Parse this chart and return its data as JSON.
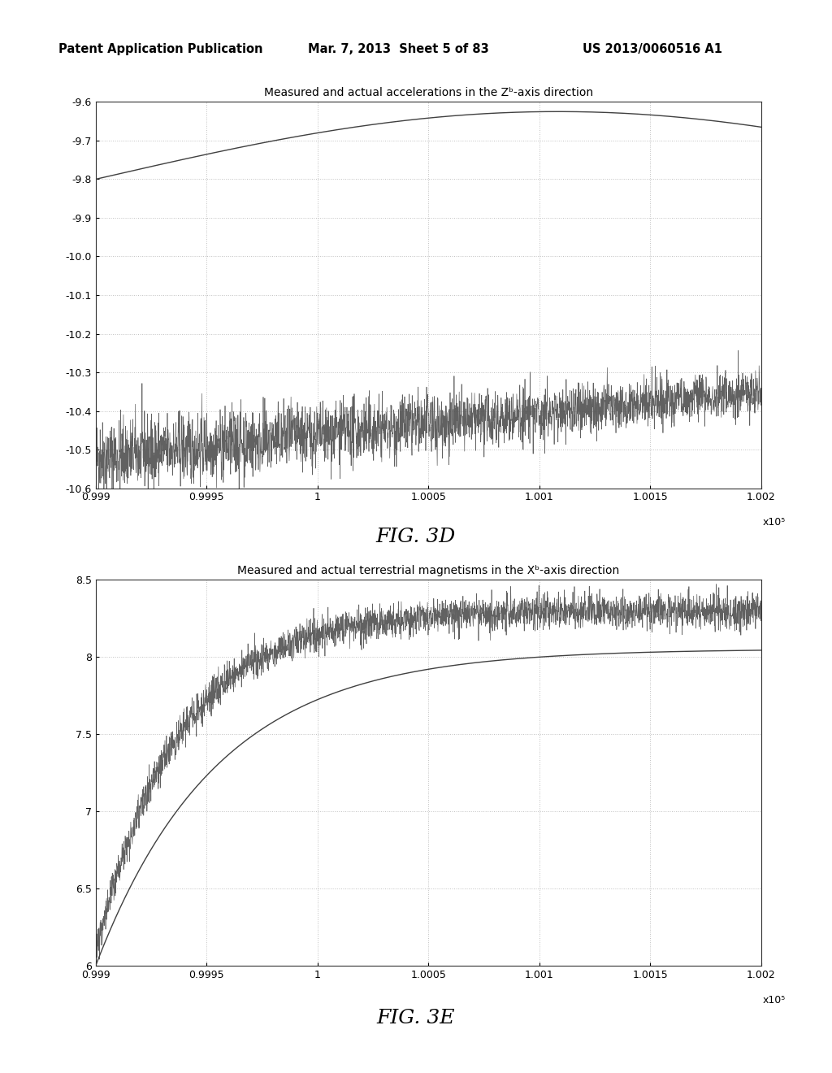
{
  "header_left": "Patent Application Publication",
  "header_mid": "Mar. 7, 2013  Sheet 5 of 83",
  "header_right": "US 2013/0060516 A1",
  "fig3d": {
    "title": "Measured and actual accelerations in the Zᵇ-axis direction",
    "xlim": [
      99900,
      100200
    ],
    "ylim": [
      -10.6,
      -9.6
    ],
    "xticks": [
      99900,
      99950,
      100000,
      100050,
      100100,
      100150,
      100200
    ],
    "xtick_labels": [
      "0.999",
      "0.9995",
      "1",
      "1.0005",
      "1.001",
      "1.0015",
      "1.002"
    ],
    "yticks": [
      -10.6,
      -10.5,
      -10.4,
      -10.3,
      -10.2,
      -10.1,
      -10.0,
      -9.9,
      -9.8,
      -9.7,
      -9.6
    ],
    "xlabel_sci": "x10⁵",
    "fig_label": "FIG. 3D"
  },
  "fig3e": {
    "title": "Measured and actual terrestrial magnetisms in the Xᵇ-axis direction",
    "xlim": [
      99900,
      100200
    ],
    "ylim": [
      6.0,
      8.5
    ],
    "xticks": [
      99900,
      99950,
      100000,
      100050,
      100100,
      100150,
      100200
    ],
    "xtick_labels": [
      "0.999",
      "0.9995",
      "1",
      "1.0005",
      "1.001",
      "1.0015",
      "1.002"
    ],
    "yticks": [
      6.0,
      6.5,
      7.0,
      7.5,
      8.0,
      8.5
    ],
    "xlabel_sci": "x10⁵",
    "fig_label": "FIG. 3E"
  },
  "background_color": "#ffffff",
  "grid_color": "#b0b0b0",
  "line_color_solid": "#404040",
  "line_color_noisy": "#505050"
}
